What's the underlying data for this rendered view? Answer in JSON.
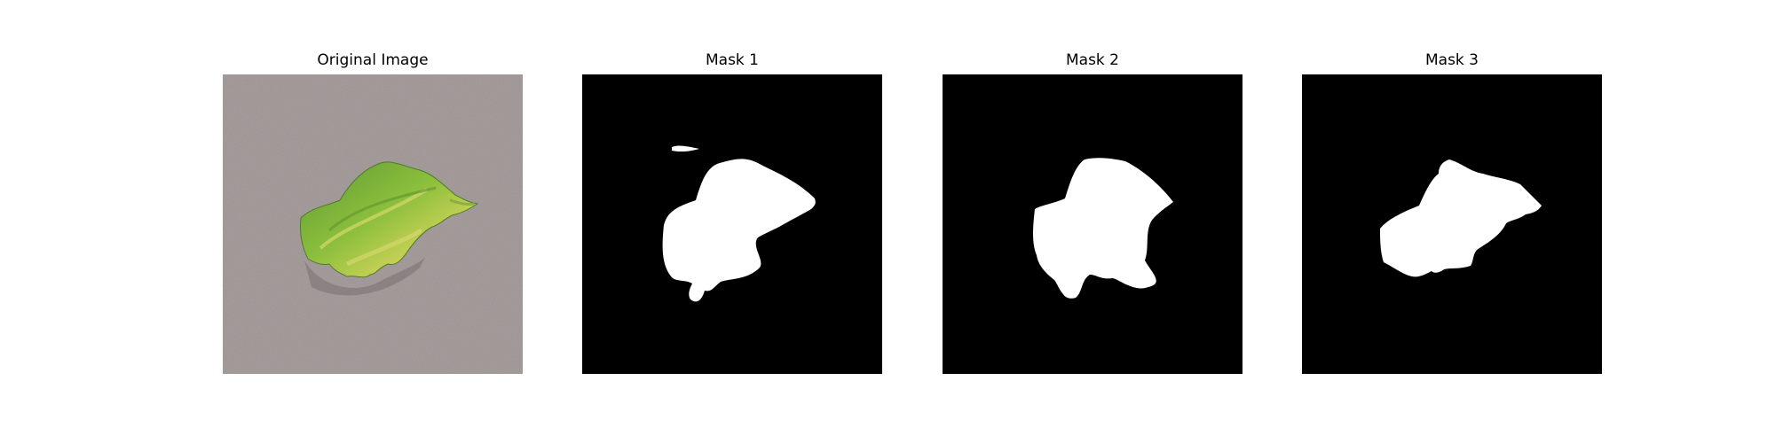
{
  "figure": {
    "panels": [
      {
        "title": "Original Image",
        "kind": "photo"
      },
      {
        "title": "Mask 1",
        "kind": "binary-mask"
      },
      {
        "title": "Mask 2",
        "kind": "binary-mask"
      },
      {
        "title": "Mask 3",
        "kind": "binary-mask"
      }
    ],
    "colors": {
      "background": "#ffffff",
      "mask_background": "#000000",
      "mask_foreground": "#ffffff",
      "surface_gray": "#9a9190",
      "leaf_green": "#7fb13a",
      "leaf_yellow": "#cfd35a"
    }
  }
}
